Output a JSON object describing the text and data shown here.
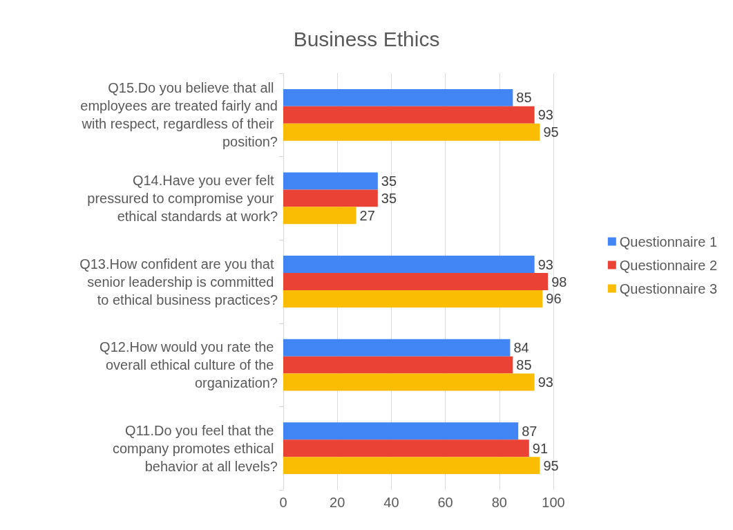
{
  "chart_data": {
    "type": "bar",
    "orientation": "horizontal",
    "title": "Business Ethics",
    "categories": [
      "Q15.Do you believe that all employees are treated fairly and with respect, regardless of their position?",
      "Q14.Have you ever felt pressured to compromise your ethical standards at work?",
      "Q13.How confident are you that senior leadership is committed to ethical business practices?",
      "Q12.How would you rate the overall ethical culture of the organization?",
      "Q11.Do you feel that the company promotes ethical behavior at all levels?"
    ],
    "series": [
      {
        "name": "Questionnaire 1",
        "color": "#4285f4",
        "values": [
          85,
          35,
          93,
          84,
          87
        ]
      },
      {
        "name": "Questionnaire 2",
        "color": "#ea4335",
        "values": [
          93,
          35,
          98,
          85,
          91
        ]
      },
      {
        "name": "Questionnaire 3",
        "color": "#fbbc04",
        "values": [
          95,
          27,
          96,
          93,
          95
        ]
      }
    ],
    "xlim": [
      0,
      100
    ],
    "xticks": [
      0,
      20,
      40,
      60,
      80,
      100
    ],
    "grid": "x",
    "legend": "right",
    "data_labels": true
  }
}
